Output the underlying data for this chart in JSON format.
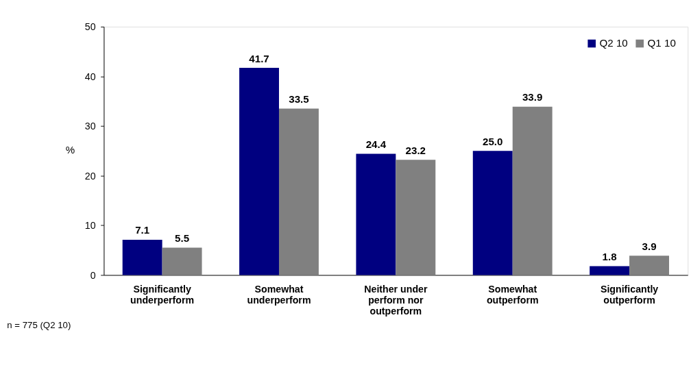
{
  "chart_data": {
    "type": "bar",
    "ylabel": "%",
    "categories": [
      "Significantly underperform",
      "Somewhat underperform",
      "Neither under perform nor outperform",
      "Somewhat outperform",
      "Significantly outperform"
    ],
    "series": [
      {
        "name": "Q2 10",
        "color": "#000080",
        "values": [
          7.1,
          41.7,
          24.4,
          25.0,
          1.8
        ],
        "value_labels": [
          "7.1",
          "41.7",
          "24.4",
          "25.0",
          "1.8"
        ]
      },
      {
        "name": "Q1 10",
        "color": "#808080",
        "values": [
          5.5,
          33.5,
          23.2,
          33.9,
          3.9
        ],
        "value_labels": [
          "5.5",
          "33.5",
          "23.2",
          "33.9",
          "3.9"
        ]
      }
    ],
    "ylim": [
      0,
      50
    ],
    "yticks": [
      0,
      10,
      20,
      30,
      40,
      50
    ],
    "grid": false,
    "legend": "top right",
    "annotations": [
      "n = 775 (Q2 10)"
    ]
  }
}
